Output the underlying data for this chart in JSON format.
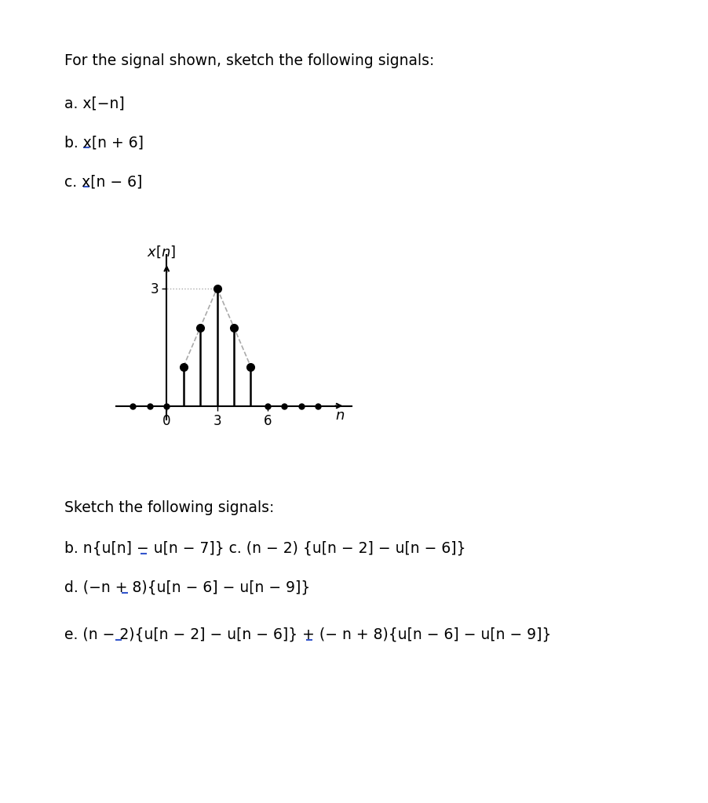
{
  "title_text": "For the signal shown, sketch the following signals:",
  "item_a": "a. x[−n]",
  "item_b": "b. x[n + 6]",
  "item_c": "c. x[n − 6]",
  "signal_n": [
    -2,
    -1,
    0,
    1,
    2,
    3,
    4,
    5,
    6,
    7,
    8,
    9
  ],
  "signal_x": [
    0,
    0,
    0,
    1,
    2,
    3,
    2,
    1,
    0,
    0,
    0,
    0
  ],
  "nonzero_n": [
    1,
    2,
    3,
    4,
    5
  ],
  "nonzero_x": [
    1,
    2,
    3,
    2,
    1
  ],
  "bottom_title": "Sketch the following signals:",
  "bottom_b": "b. n{u[n] − u[n − 7]} c. (n − 2) {u[n − 2] − u[n − 6]}",
  "bottom_d": "d. (−n + 8){u[n − 6] − u[n − 9]}",
  "bottom_e": "e. (n − 2){u[n − 2] − u[n − 6]} + (− n + 8){u[n − 6] − u[n − 9]}",
  "bg_color": "#ffffff",
  "stem_color": "#000000",
  "dashed_color": "#aaaaaa",
  "underline_color": "#3355cc",
  "font_size": 13.5,
  "font_size_axis": 12
}
